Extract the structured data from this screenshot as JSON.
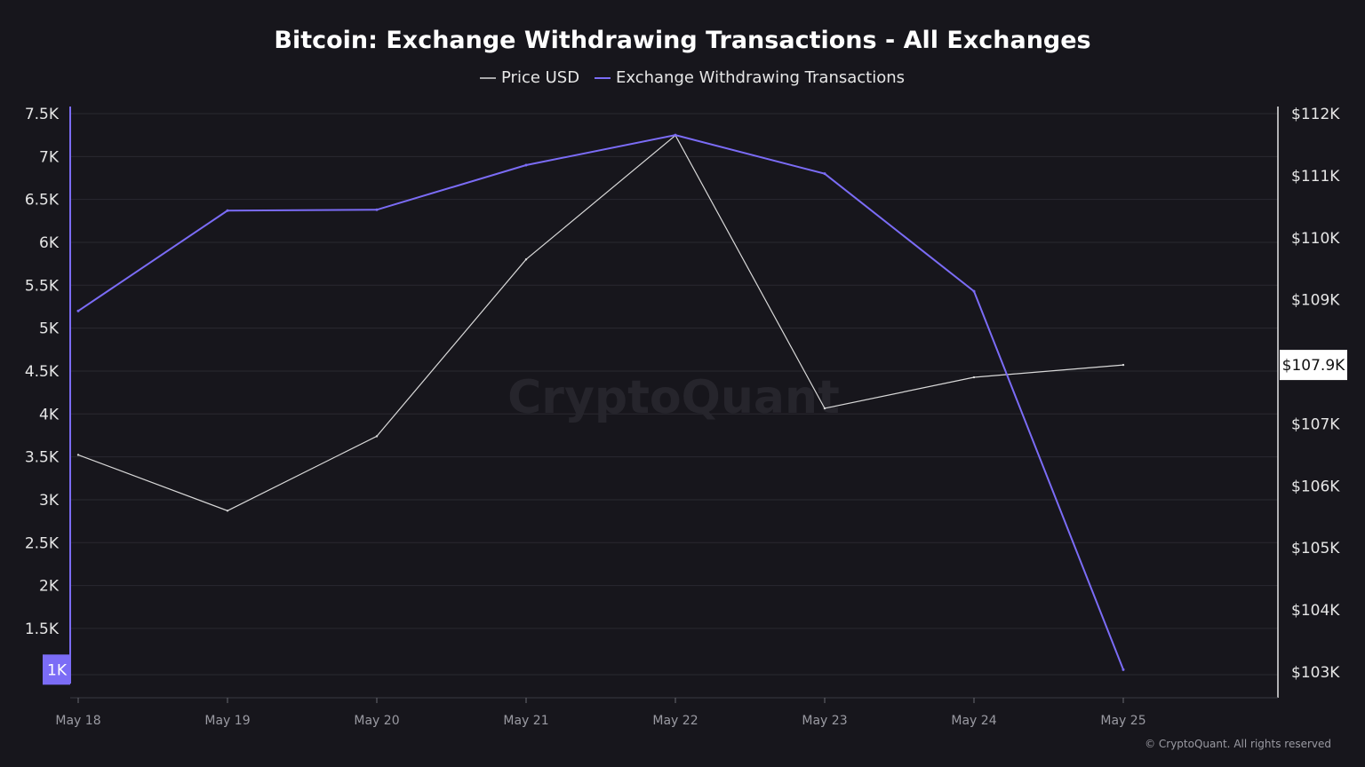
{
  "chart_data": {
    "type": "line",
    "title": "Bitcoin: Exchange Withdrawing Transactions - All Exchanges",
    "categories": [
      "May 18",
      "May 19",
      "May 20",
      "May 21",
      "May 22",
      "May 23",
      "May 24",
      "May 25"
    ],
    "legend_position": "top-center",
    "grid": true,
    "series": [
      {
        "name": "Price USD",
        "axis": "right",
        "color": "#d9d9d9",
        "values": [
          106500,
          105600,
          106800,
          109650,
          111650,
          107250,
          107750,
          107950
        ]
      },
      {
        "name": "Exchange Withdrawing Transactions",
        "axis": "left",
        "color": "#7b6cf6",
        "values": [
          5200,
          6370,
          6380,
          6900,
          7250,
          6800,
          5430,
          1020
        ]
      }
    ],
    "left_axis": {
      "ylim": [
        775,
        7500
      ],
      "ticks": [
        7500,
        7000,
        6500,
        6000,
        5500,
        5000,
        4500,
        4000,
        3500,
        3000,
        2500,
        2000,
        1500
      ],
      "tick_labels": [
        "7.5K",
        "7K",
        "6.5K",
        "6K",
        "5.5K",
        "5K",
        "4.5K",
        "4K",
        "3.5K",
        "3K",
        "2.5K",
        "2K",
        "1.5K"
      ],
      "current_value_label": "1K",
      "current_value": 1020
    },
    "right_axis": {
      "ylim": [
        102700,
        112000
      ],
      "ticks": [
        112000,
        111000,
        110000,
        109000,
        108000,
        107000,
        106000,
        105000,
        104000,
        103000
      ],
      "tick_labels": [
        "$112K",
        "$111K",
        "$110K",
        "$109K",
        "$108K",
        "$107K",
        "$106K",
        "$105K",
        "$104K",
        "$103K"
      ],
      "current_value_label": "$107.9K",
      "current_value": 107950
    }
  },
  "watermark": "CryptoQuant",
  "copyright": "© CryptoQuant. All rights reserved"
}
